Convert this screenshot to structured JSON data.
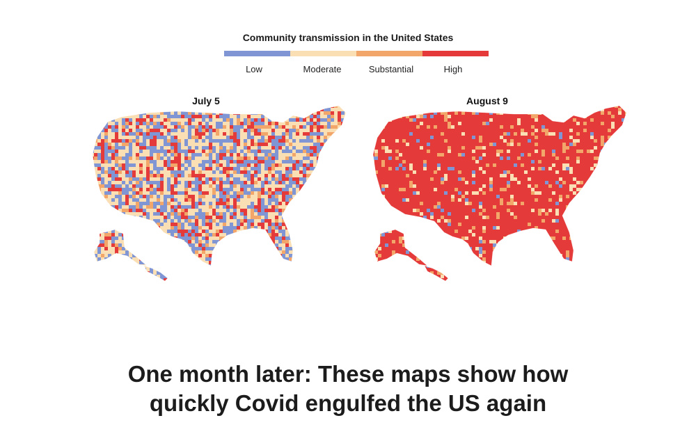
{
  "legend": {
    "title": "Community transmission in the United States",
    "items": [
      {
        "label": "Low",
        "color": "#7f95d4"
      },
      {
        "label": "Moderate",
        "color": "#fadfb5"
      },
      {
        "label": "Substantial",
        "color": "#f3a66a"
      },
      {
        "label": "High",
        "color": "#e53a3a"
      }
    ]
  },
  "maps": [
    {
      "title": "July 5",
      "mix": {
        "Low": 0.33,
        "Moderate": 0.37,
        "Substantial": 0.1,
        "High": 0.2
      }
    },
    {
      "title": "August 9",
      "mix": {
        "Low": 0.04,
        "Moderate": 0.07,
        "Substantial": 0.09,
        "High": 0.8
      }
    }
  ],
  "headline": {
    "line1": "One month later: These maps show how",
    "line2": "quickly Covid engulfed the US again"
  }
}
